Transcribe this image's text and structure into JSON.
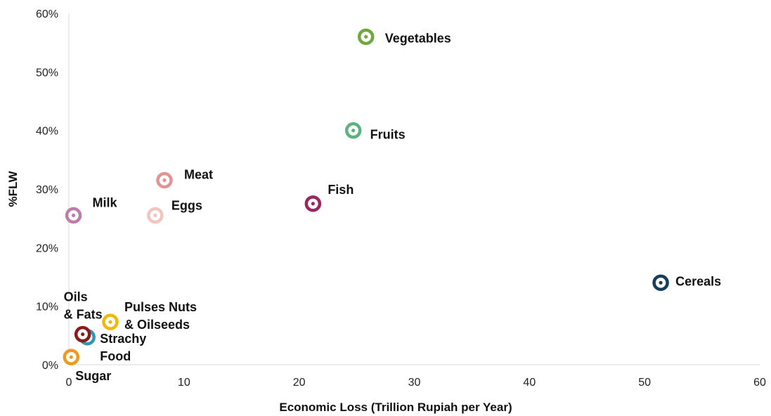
{
  "chart_data": {
    "type": "scatter",
    "title": "",
    "xlabel": "Economic Loss (Trillion Rupiah per Year)",
    "ylabel": "%FLW",
    "xlim": [
      0,
      60
    ],
    "ylim": [
      0,
      60
    ],
    "x_ticks": [
      "0",
      "10",
      "20",
      "30",
      "40",
      "50",
      "60"
    ],
    "y_ticks": [
      "0%",
      "10%",
      "20%",
      "30%",
      "40%",
      "50%",
      "60%"
    ],
    "grid": false,
    "legend": "none",
    "points": [
      {
        "label": [
          "Vegetables"
        ],
        "x": 25.8,
        "y": 56,
        "color": "#6ea83e"
      },
      {
        "label": [
          "Fruits"
        ],
        "x": 24.7,
        "y": 40,
        "color": "#5bb47f"
      },
      {
        "label": [
          "Meat"
        ],
        "x": 8.3,
        "y": 31.5,
        "color": "#e39393"
      },
      {
        "label": [
          "Fish"
        ],
        "x": 21.2,
        "y": 27.5,
        "color": "#99275f"
      },
      {
        "label": [
          "Milk"
        ],
        "x": 0.4,
        "y": 25.5,
        "color": "#c07bab"
      },
      {
        "label": [
          "Eggs"
        ],
        "x": 7.5,
        "y": 25.5,
        "color": "#f1c4bf"
      },
      {
        "label": [
          "Cereals"
        ],
        "x": 51.4,
        "y": 14,
        "color": "#173f5d"
      },
      {
        "label": [
          "Pulses Nuts",
          "& Oilseeds"
        ],
        "x": 3.6,
        "y": 7.3,
        "color": "#f2b807"
      },
      {
        "label": [
          "Strachy",
          "Food"
        ],
        "x": 1.6,
        "y": 4.7,
        "color": "#2e98b4"
      },
      {
        "label": [
          "Oils",
          "& Fats"
        ],
        "x": 1.2,
        "y": 5.2,
        "color": "#8b1a18"
      },
      {
        "label": [
          "Sugar"
        ],
        "x": 0.2,
        "y": 1.3,
        "color": "#ef9a1c"
      }
    ]
  }
}
